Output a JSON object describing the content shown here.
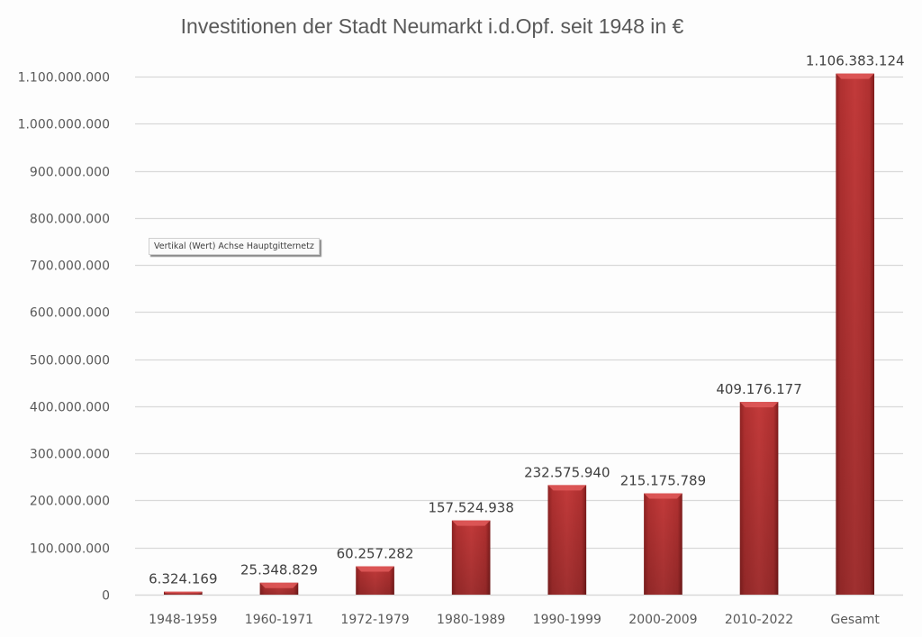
{
  "chart_data": {
    "type": "bar",
    "title": "Investitionen der Stadt Neumarkt i.d.Opf. seit 1948 in €",
    "xlabel": "",
    "ylabel": "",
    "categories": [
      "1948-1959",
      "1960-1971",
      "1972-1979",
      "1980-1989",
      "1990-1999",
      "2000-2009",
      "2010-2022",
      "Gesamt"
    ],
    "values": [
      6324169,
      25348829,
      60257282,
      157524938,
      232575940,
      215175789,
      409176177,
      1106383124
    ],
    "data_labels": [
      "6.324.169",
      "25.348.829",
      "60.257.282",
      "157.524.938",
      "232.575.940",
      "215.175.789",
      "409.176.177",
      "1.106.383.124"
    ],
    "ylim": [
      0,
      1100000000
    ],
    "yticks": [
      0,
      100000000,
      200000000,
      300000000,
      400000000,
      500000000,
      600000000,
      700000000,
      800000000,
      900000000,
      1000000000,
      1100000000
    ],
    "ytick_labels": [
      "0",
      "100.000.000",
      "200.000.000",
      "300.000.000",
      "400.000.000",
      "500.000.000",
      "600.000.000",
      "700.000.000",
      "800.000.000",
      "900.000.000",
      "1.000.000.000",
      "1.100.000.000"
    ],
    "grid": true,
    "legend": "none",
    "bar_color": "#b83232"
  },
  "tooltip": {
    "text": "Vertikal (Wert) Achse Hauptgitternetz"
  }
}
